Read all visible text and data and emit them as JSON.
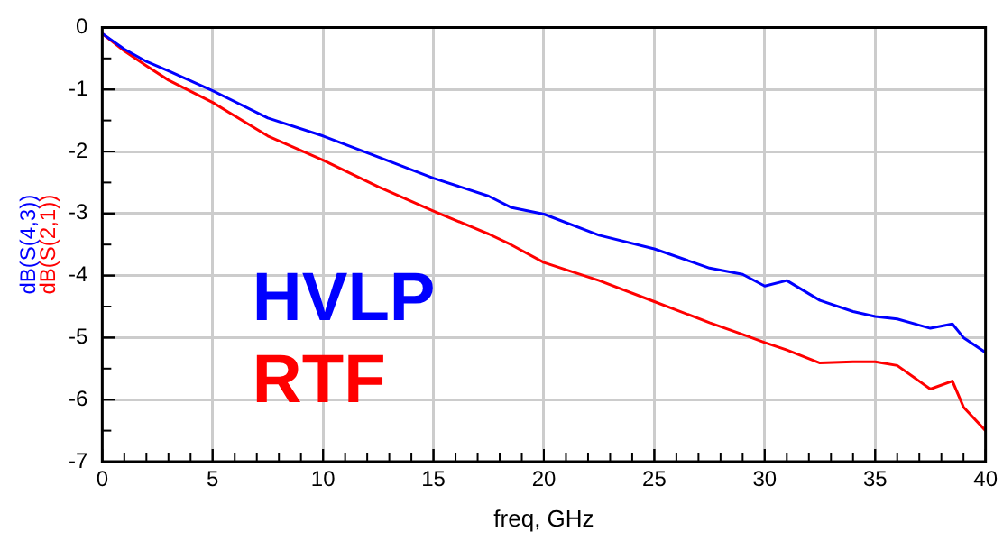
{
  "chart_data": {
    "type": "line",
    "xlabel": "freq, GHz",
    "x": [
      0,
      1,
      2,
      3,
      5,
      7.5,
      10,
      12.5,
      15,
      17.5,
      18.5,
      20,
      22.5,
      25,
      27.5,
      29,
      30,
      31,
      32.5,
      34,
      35,
      36,
      37.5,
      38.5,
      39,
      40
    ],
    "series": [
      {
        "name": "dB(S(4,3))",
        "color": "#0000ff",
        "values": [
          -0.1,
          -0.35,
          -0.55,
          -0.7,
          -1.02,
          -1.46,
          -1.75,
          -2.09,
          -2.43,
          -2.72,
          -2.9,
          -3.01,
          -3.35,
          -3.57,
          -3.88,
          -3.98,
          -4.17,
          -4.08,
          -4.4,
          -4.58,
          -4.66,
          -4.7,
          -4.85,
          -4.78,
          -5.0,
          -5.24
        ]
      },
      {
        "name": "dB(S(2,1))",
        "color": "#ff0000",
        "values": [
          -0.1,
          -0.38,
          -0.62,
          -0.85,
          -1.21,
          -1.75,
          -2.14,
          -2.57,
          -2.96,
          -3.33,
          -3.5,
          -3.79,
          -4.08,
          -4.42,
          -4.76,
          -4.95,
          -5.08,
          -5.2,
          -5.41,
          -5.39,
          -5.39,
          -5.45,
          -5.83,
          -5.7,
          -6.12,
          -6.5
        ]
      }
    ],
    "xlim": [
      0,
      40
    ],
    "xticks": [
      0,
      5,
      10,
      15,
      20,
      25,
      30,
      35,
      40
    ],
    "ylim": [
      -7,
      0
    ],
    "yticks": [
      -7,
      -6,
      -5,
      -4,
      -3,
      -2,
      -1,
      0
    ],
    "grid": true,
    "annotations": [
      "HVLP",
      "RTF"
    ]
  }
}
